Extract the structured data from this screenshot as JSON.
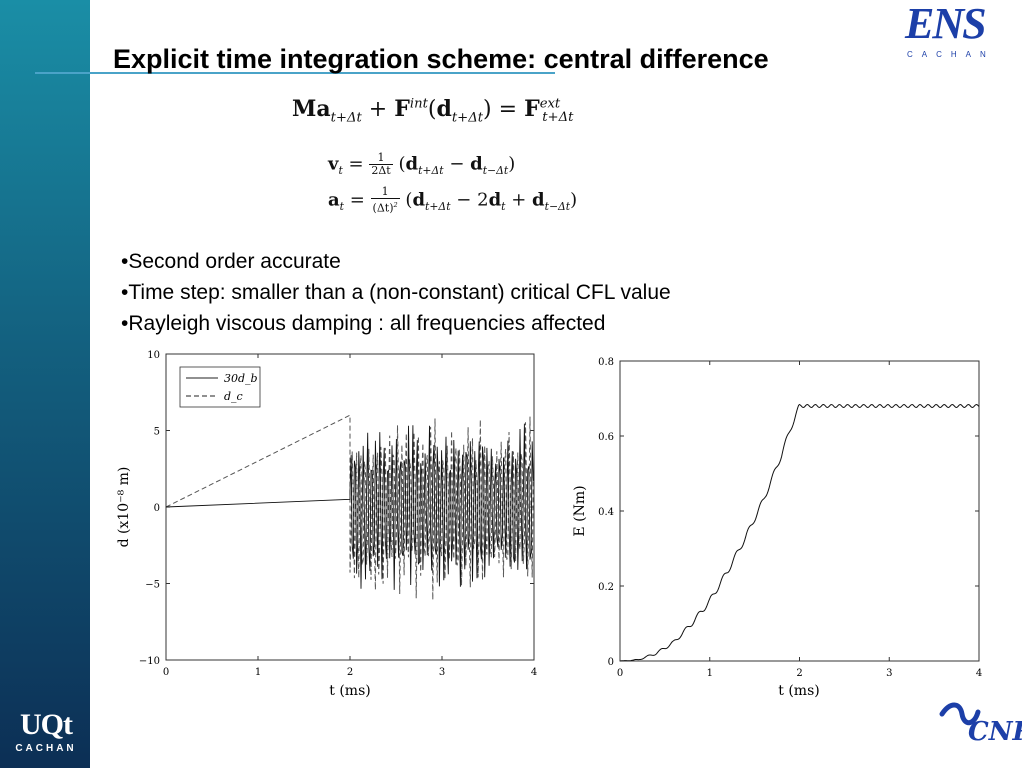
{
  "slide": {
    "title": "Explicit time integration scheme: central difference",
    "bullets": [
      "•Second order accurate",
      "•Time step: smaller than a (non-constant) critical CFL value",
      "•Rayleigh viscous damping : all frequencies affected"
    ]
  },
  "logos": {
    "ens": {
      "mark": "ENS",
      "sub": "CACHAN"
    },
    "univ": {
      "mark": "UQt",
      "sub": "CACHAN"
    },
    "cnrs": {
      "mark": "CNRS"
    }
  },
  "equations": {
    "motion": "Ma_{t+Δt} + F^{int}(d_{t+Δt}) = F^{ext}_{t+Δt}",
    "velocity": "v_t = 1/(2Δt) (d_{t+Δt} − d_{t−Δt})",
    "acceleration": "a_t = 1/(Δt)^2 (d_{t+Δt} − 2d_t + d_{t−Δt})"
  },
  "colors": {
    "accent": "#1c3fa8",
    "sidebar_top": "#1a8ea6",
    "sidebar_bottom": "#0c2f55",
    "rule": "#4aa3c8"
  },
  "chart_data": [
    {
      "type": "line",
      "xlabel": "t (ms)",
      "ylabel": "d (x10⁻⁸ m)",
      "xlim": [
        0,
        4
      ],
      "ylim": [
        -10,
        10
      ],
      "xticks": [
        0,
        1,
        2,
        3,
        4
      ],
      "yticks": [
        -10,
        -5,
        0,
        5,
        10
      ],
      "legend_position": "top-left",
      "series": [
        {
          "name": "30d_b",
          "style": "solid",
          "description_points": {
            "x": [
              0,
              2
            ],
            "y": [
              0,
              0.5
            ]
          },
          "post_t2": "oscillation amplitude about ±5 to ±7 for t in [2,4]"
        },
        {
          "name": "d_c",
          "style": "dashed",
          "description_points": {
            "x": [
              0,
              2
            ],
            "y": [
              0,
              6
            ]
          },
          "post_t2": "oscillation amplitude about ±6 for t in [2,4]"
        }
      ]
    },
    {
      "type": "line",
      "xlabel": "t (ms)",
      "ylabel": "E (Nm)",
      "xlim": [
        0,
        4
      ],
      "ylim": [
        0,
        0.8
      ],
      "xticks": [
        0,
        1,
        2,
        3,
        4
      ],
      "yticks": [
        0,
        0.2,
        0.4,
        0.6,
        0.8
      ],
      "series": [
        {
          "x": [
            0,
            0.2,
            0.4,
            0.6,
            0.8,
            1.0,
            1.2,
            1.4,
            1.6,
            1.8,
            1.9,
            2.0,
            2.5,
            3.0,
            3.5,
            4.0
          ],
          "y": [
            0,
            0.003,
            0.02,
            0.05,
            0.1,
            0.16,
            0.24,
            0.33,
            0.43,
            0.55,
            0.62,
            0.68,
            0.68,
            0.68,
            0.68,
            0.68
          ]
        }
      ]
    }
  ]
}
